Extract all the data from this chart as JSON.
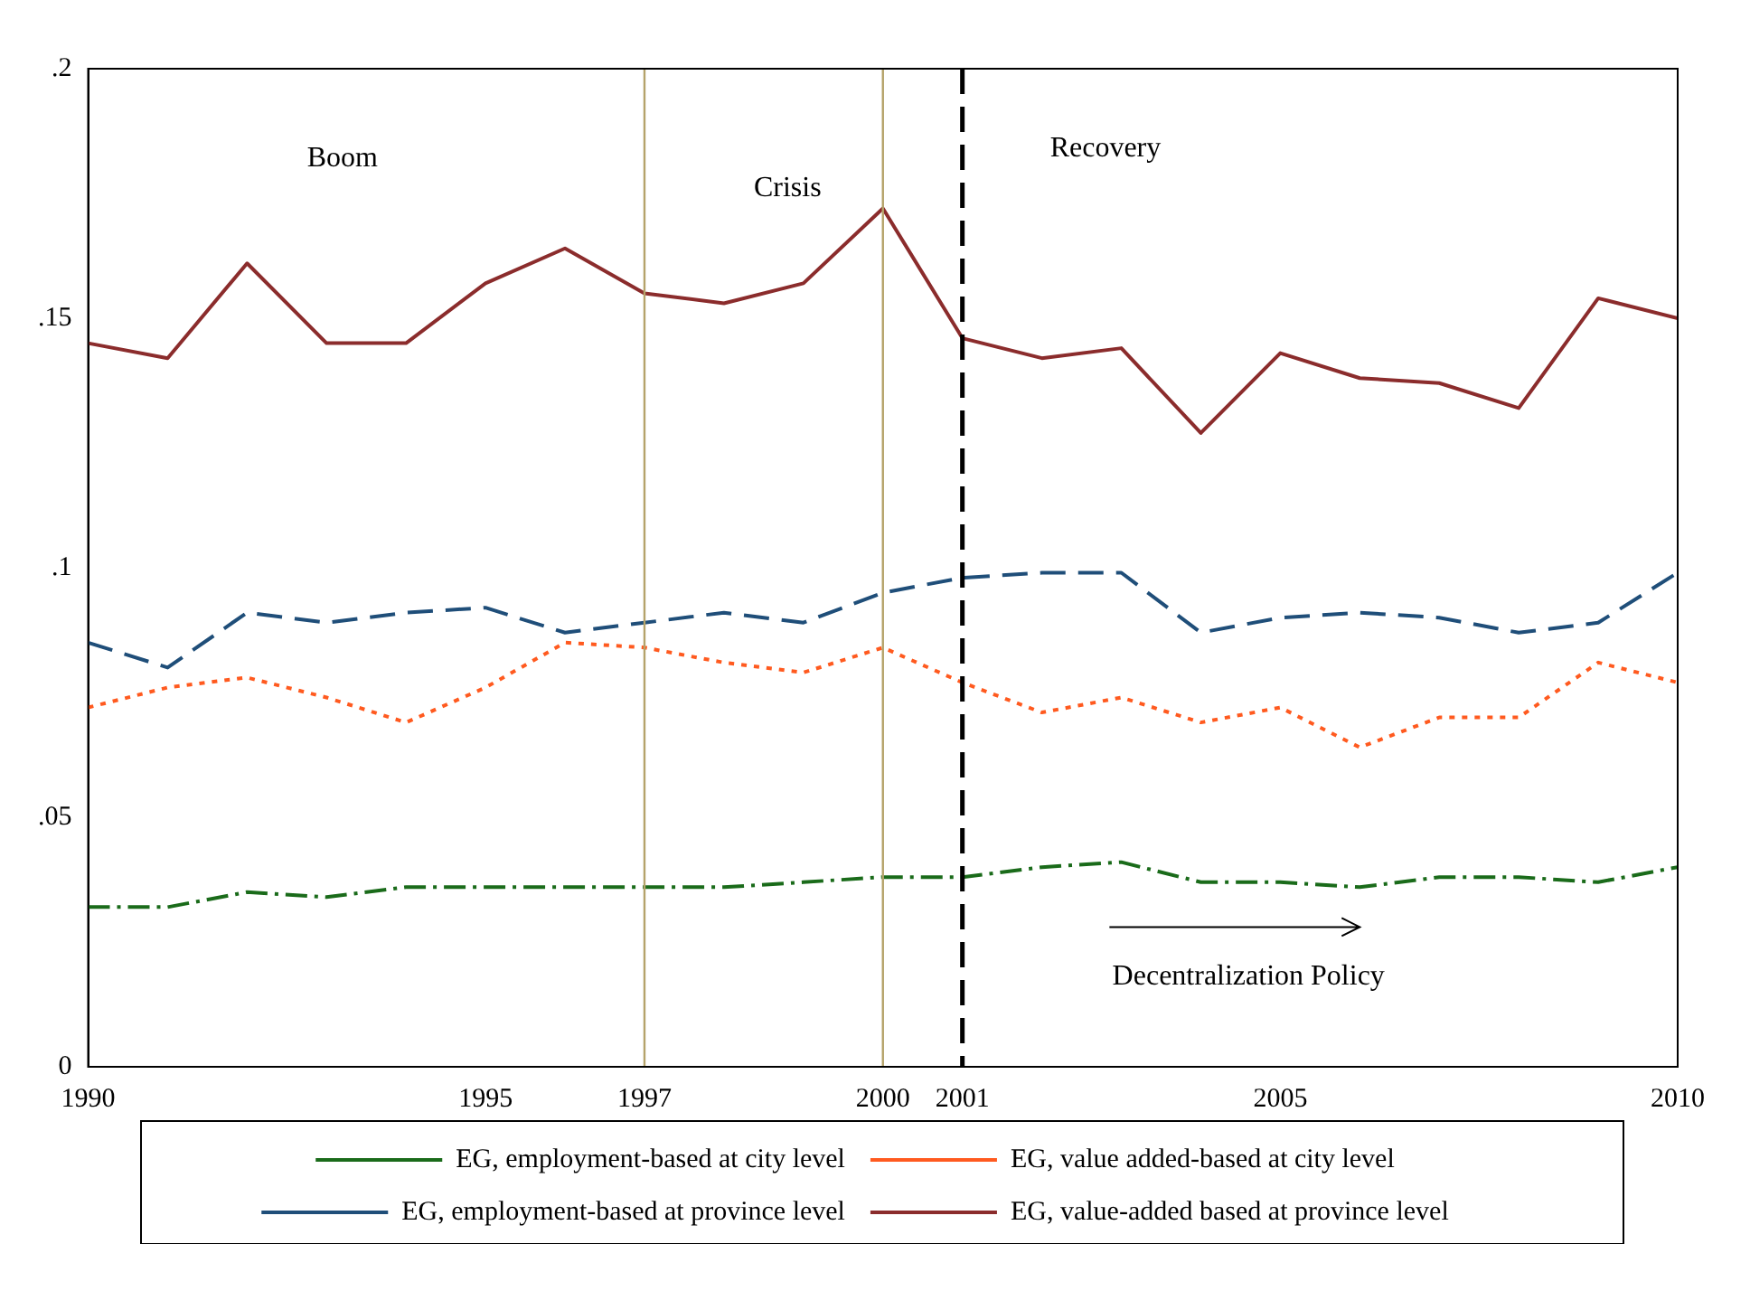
{
  "chart_data": {
    "type": "line",
    "x": [
      1990,
      1991,
      1992,
      1993,
      1994,
      1995,
      1996,
      1997,
      1998,
      1999,
      2000,
      2001,
      2002,
      2003,
      2004,
      2005,
      2006,
      2007,
      2008,
      2009,
      2010
    ],
    "xlim": [
      1990,
      2010
    ],
    "xticks": [
      1990,
      1995,
      1997,
      2000,
      2001,
      2005,
      2010
    ],
    "ylim": [
      0,
      0.2
    ],
    "yticks": [
      {
        "value": 0,
        "label": "0"
      },
      {
        "value": 0.05,
        "label": ".05"
      },
      {
        "value": 0.1,
        "label": ".1"
      },
      {
        "value": 0.15,
        "label": ".15"
      },
      {
        "value": 0.2,
        "label": ".2"
      }
    ],
    "grid": false,
    "legend": "bottom",
    "marker": "none",
    "series": [
      {
        "name": "EG, employment-based at city level",
        "color": "#1a6b1a",
        "line_style": "dashdot",
        "values": [
          0.032,
          0.032,
          0.035,
          0.034,
          0.036,
          0.036,
          0.036,
          0.036,
          0.036,
          0.037,
          0.038,
          0.038,
          0.04,
          0.041,
          0.037,
          0.037,
          0.036,
          0.038,
          0.038,
          0.037,
          0.04
        ]
      },
      {
        "name": "EG, value added-based at city level",
        "color": "#ff5a1f",
        "line_style": "dotted",
        "values": [
          0.072,
          0.076,
          0.078,
          0.074,
          0.069,
          0.076,
          0.085,
          0.084,
          0.081,
          0.079,
          0.084,
          0.077,
          0.071,
          0.074,
          0.069,
          0.072,
          0.064,
          0.07,
          0.07,
          0.081,
          0.077
        ]
      },
      {
        "name": "EG, employment-based at province level",
        "color": "#1f4e79",
        "line_style": "dashed",
        "values": [
          0.085,
          0.08,
          0.091,
          0.089,
          0.091,
          0.092,
          0.087,
          0.089,
          0.091,
          0.089,
          0.095,
          0.098,
          0.099,
          0.099,
          0.087,
          0.09,
          0.091,
          0.09,
          0.087,
          0.089,
          0.099
        ]
      },
      {
        "name": "EG, value-added based at province level",
        "color": "#8b2c2c",
        "line_style": "solid",
        "values": [
          0.145,
          0.142,
          0.161,
          0.145,
          0.145,
          0.157,
          0.164,
          0.155,
          0.153,
          0.157,
          0.172,
          0.146,
          0.142,
          0.144,
          0.127,
          0.143,
          0.138,
          0.137,
          0.132,
          0.154,
          0.15
        ]
      }
    ],
    "ref_lines": [
      {
        "axis": "x",
        "value": 1997,
        "color": "#b5a36a",
        "line_style": "solid"
      },
      {
        "axis": "x",
        "value": 2000,
        "color": "#b5a36a",
        "line_style": "solid"
      },
      {
        "axis": "x",
        "value": 2001,
        "color": "#000000",
        "line_style": "dashed"
      }
    ],
    "annotations": [
      "Boom",
      "Crisis",
      "Recovery",
      "Decentralization Policy"
    ]
  }
}
